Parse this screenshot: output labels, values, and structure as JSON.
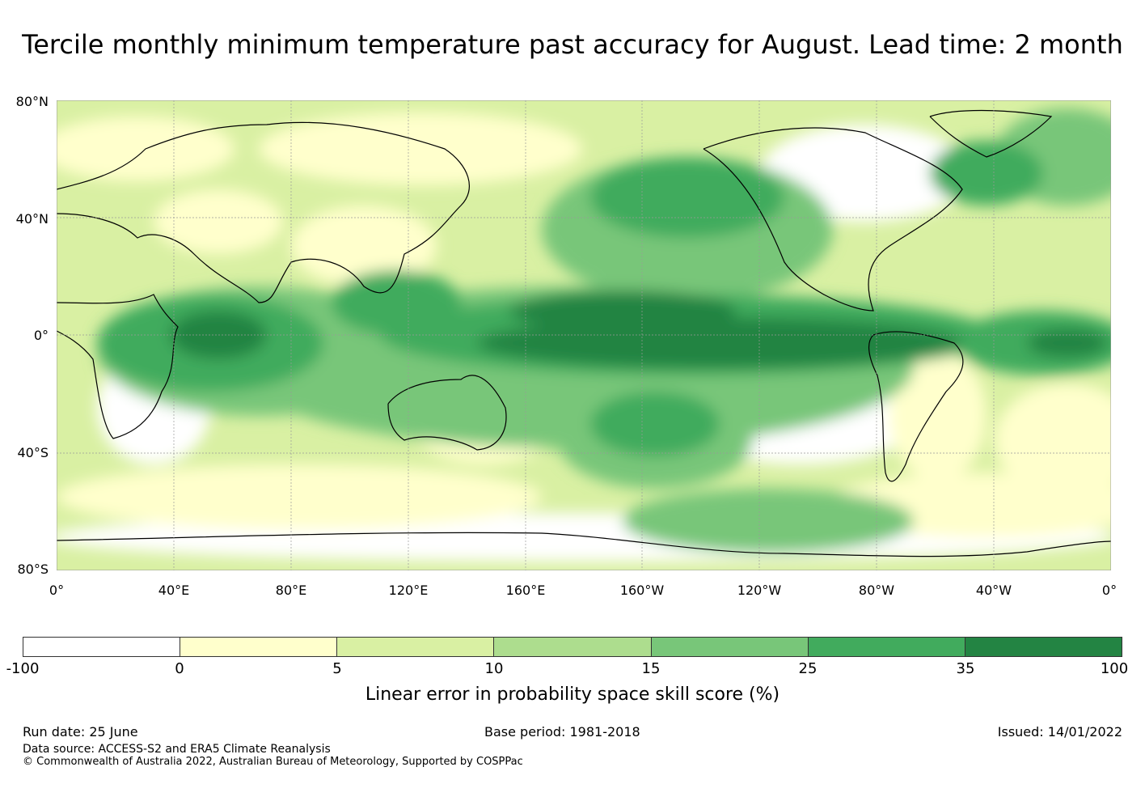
{
  "title": "Tercile monthly minimum temperature past accuracy for August. Lead time: 2 month",
  "map": {
    "lat_labels": [
      "80°N",
      "40°N",
      "0°",
      "40°S",
      "80°S"
    ],
    "lon_labels": [
      "0°",
      "40°E",
      "80°E",
      "120°E",
      "160°E",
      "160°W",
      "120°W",
      "80°W",
      "40°W",
      "0°"
    ],
    "colors": {
      "background": "#d9efa3",
      "ocean_high": "#238443",
      "ocean_mid": "#41ab5d",
      "land_coast": "#000000",
      "gridline": "#999999"
    }
  },
  "colorbar": {
    "bins": [
      {
        "color": "#ffffff"
      },
      {
        "color": "#ffffcc"
      },
      {
        "color": "#d9f0a3"
      },
      {
        "color": "#addd8e"
      },
      {
        "color": "#78c679"
      },
      {
        "color": "#41ab5d"
      },
      {
        "color": "#238443"
      }
    ],
    "ticks": [
      "-100",
      "0",
      "5",
      "10",
      "15",
      "25",
      "35",
      "100"
    ],
    "label": "Linear error in probability space skill score (%)"
  },
  "footer": {
    "run_date": "Run date: 25 June",
    "base_period": "Base period: 1981-2018",
    "issued": "Issued: 14/01/2022",
    "data_source": "Data source: ACCESS-S2 and ERA5 Climate Reanalysis",
    "copyright": "© Commonwealth of Australia 2022, Australian Bureau of Meteorology, Supported by COSPPac"
  }
}
